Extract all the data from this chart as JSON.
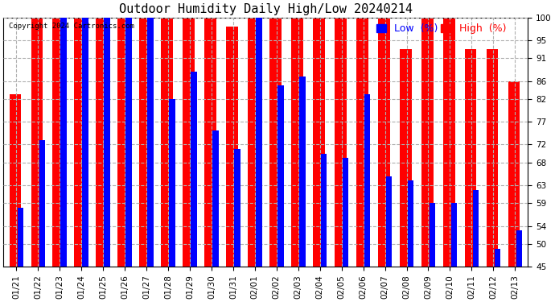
{
  "title": "Outdoor Humidity Daily High/Low 20240214",
  "copyright": "Copyright 2024 Cartronics.com",
  "legend_low": "Low  (%)",
  "legend_high": "High  (%)",
  "dates": [
    "01/21",
    "01/22",
    "01/23",
    "01/24",
    "01/25",
    "01/26",
    "01/27",
    "01/28",
    "01/29",
    "01/30",
    "01/31",
    "02/01",
    "02/02",
    "02/03",
    "02/04",
    "02/05",
    "02/06",
    "02/07",
    "02/08",
    "02/09",
    "02/10",
    "02/11",
    "02/12",
    "02/13"
  ],
  "high_values": [
    83,
    100,
    100,
    100,
    100,
    100,
    100,
    100,
    100,
    100,
    98,
    100,
    100,
    100,
    100,
    100,
    100,
    100,
    93,
    100,
    100,
    93,
    93,
    86
  ],
  "low_values": [
    58,
    73,
    100,
    100,
    100,
    100,
    100,
    82,
    88,
    75,
    71,
    100,
    85,
    87,
    70,
    69,
    83,
    65,
    64,
    59,
    59,
    62,
    49,
    53
  ],
  "ylim": [
    45,
    100
  ],
  "yticks": [
    45,
    50,
    54,
    59,
    63,
    68,
    72,
    77,
    82,
    86,
    91,
    95,
    100
  ],
  "high_color": "#ff0000",
  "low_color": "#0000ff",
  "bg_color": "#ffffff",
  "grid_color": "#b0b0b0",
  "title_fontsize": 11,
  "tick_fontsize": 7.5,
  "legend_fontsize": 9,
  "high_bar_width": 0.55,
  "low_bar_width": 0.28
}
